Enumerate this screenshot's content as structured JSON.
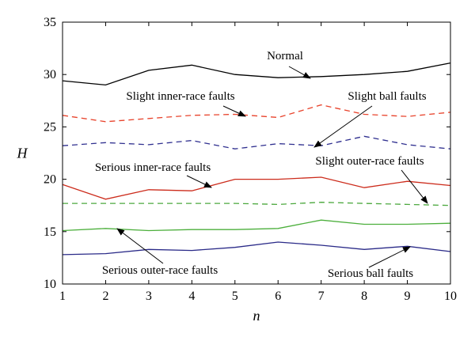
{
  "chart_data": {
    "type": "line",
    "xlabel": "n",
    "ylabel": "H",
    "xlim": [
      1,
      10
    ],
    "ylim": [
      10,
      35
    ],
    "x": [
      1,
      2,
      3,
      4,
      5,
      6,
      7,
      8,
      9,
      10
    ],
    "x_ticks": [
      "1",
      "2",
      "3",
      "4",
      "5",
      "6",
      "7",
      "8",
      "9",
      "10"
    ],
    "y_ticks": [
      "10",
      "15",
      "20",
      "25",
      "30",
      "35"
    ],
    "grid": false,
    "series": [
      {
        "name": "Normal",
        "color": "#000000",
        "style": "solid",
        "values": [
          29.4,
          29.0,
          30.4,
          30.9,
          30.0,
          29.7,
          29.8,
          30.0,
          30.3,
          31.1
        ]
      },
      {
        "name": "Slight inner-race faults",
        "color": "#e8432c",
        "style": "dashed",
        "values": [
          26.1,
          25.5,
          25.8,
          26.1,
          26.2,
          25.9,
          27.1,
          26.2,
          26.0,
          26.4
        ]
      },
      {
        "name": "Slight ball faults",
        "color": "#2f2f8f",
        "style": "dashed",
        "values": [
          23.2,
          23.5,
          23.3,
          23.7,
          22.9,
          23.4,
          23.2,
          24.1,
          23.3,
          22.9
        ]
      },
      {
        "name": "Serious inner-race faults",
        "color": "#cc2b1b",
        "style": "solid",
        "values": [
          19.5,
          18.1,
          19.0,
          18.9,
          20.0,
          20.0,
          20.2,
          19.2,
          19.8,
          19.4
        ]
      },
      {
        "name": "Slight outer-race faults",
        "color": "#4ca83e",
        "style": "dashed",
        "values": [
          17.7,
          17.7,
          17.7,
          17.7,
          17.7,
          17.6,
          17.8,
          17.7,
          17.6,
          17.5
        ]
      },
      {
        "name": "Serious outer-race faults",
        "color": "#4caf3c",
        "style": "solid",
        "values": [
          15.1,
          15.3,
          15.1,
          15.2,
          15.2,
          15.3,
          16.1,
          15.7,
          15.7,
          15.8
        ]
      },
      {
        "name": "Serious ball faults",
        "color": "#2a2a88",
        "style": "solid",
        "values": [
          12.8,
          12.9,
          13.3,
          13.2,
          13.5,
          14.0,
          13.7,
          13.3,
          13.6,
          13.1
        ]
      }
    ],
    "annotations": [
      {
        "text": "Normal"
      },
      {
        "text": "Slight inner-race faults"
      },
      {
        "text": "Slight ball faults"
      },
      {
        "text": "Serious inner-race faults"
      },
      {
        "text": "Slight outer-race faults"
      },
      {
        "text": "Serious outer-race faults"
      },
      {
        "text": "Serious ball faults"
      }
    ]
  }
}
